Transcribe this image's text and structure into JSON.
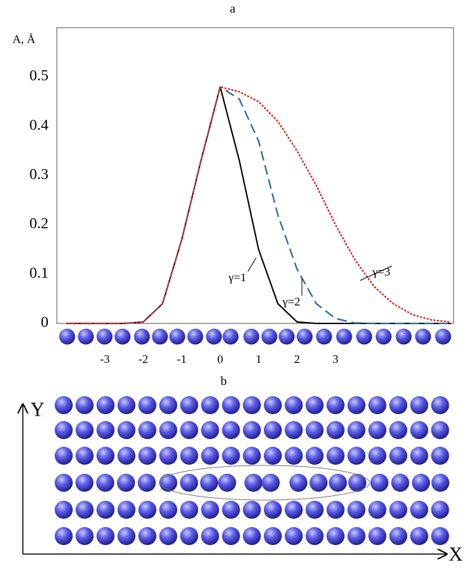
{
  "chart_data": {
    "type": "line",
    "title": "a",
    "y_label": "A, Å",
    "x": [
      -4,
      -3.5,
      -3,
      -2.5,
      -2,
      -1.5,
      -1,
      -0.5,
      0,
      0.5,
      1,
      1.5,
      2,
      2.5,
      3,
      3.5,
      4,
      4.5,
      5,
      5.5,
      6
    ],
    "series": [
      {
        "name": "γ=1",
        "color": "#000000",
        "dash": "solid",
        "values": [
          0,
          0,
          0,
          0,
          0.003,
          0.04,
          0.17,
          0.33,
          0.48,
          0.33,
          0.15,
          0.04,
          0.003,
          0,
          0,
          0,
          0,
          0,
          0,
          0,
          0
        ]
      },
      {
        "name": "γ=2",
        "color": "#2e6e9e",
        "dash": "dashed",
        "values": [
          0,
          0,
          0,
          0,
          0.003,
          0.04,
          0.17,
          0.33,
          0.48,
          0.455,
          0.37,
          0.22,
          0.11,
          0.04,
          0.01,
          0.001,
          0,
          0,
          0,
          0,
          0
        ]
      },
      {
        "name": "γ=3",
        "color": "#e0201c",
        "dash": "dotted",
        "values": [
          0,
          0,
          0,
          0,
          0.003,
          0.04,
          0.17,
          0.33,
          0.48,
          0.47,
          0.45,
          0.41,
          0.35,
          0.28,
          0.2,
          0.13,
          0.075,
          0.04,
          0.018,
          0.007,
          0.003
        ]
      }
    ],
    "xlim": [
      -4.25,
      6.07
    ],
    "xticks": [
      -3,
      -2,
      -1,
      0,
      1,
      2,
      3
    ],
    "ylim": [
      0,
      0.6
    ],
    "yticks": [
      0,
      0.1,
      0.2,
      0.3,
      0.4,
      0.5
    ],
    "grid": false
  },
  "panel_b": {
    "label": "b",
    "x_axis": "X",
    "y_axis": "Y"
  }
}
